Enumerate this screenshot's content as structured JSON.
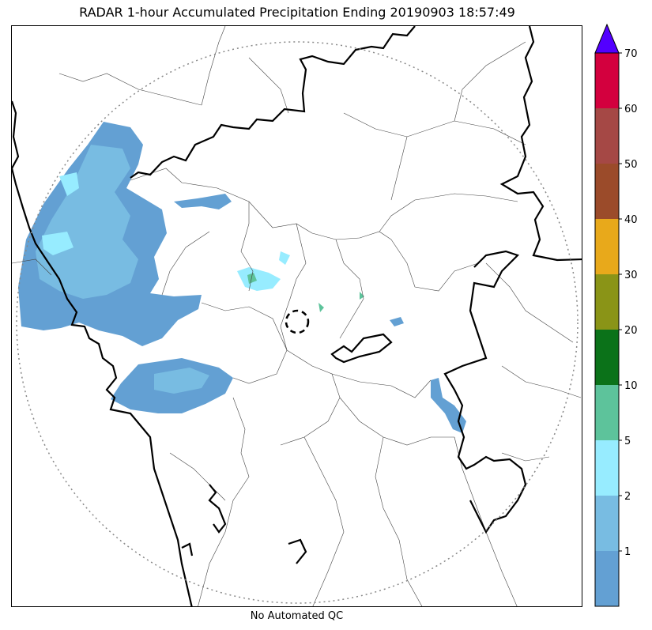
{
  "title": "RADAR 1-hour Accumulated Precipitation Ending 20190903 18:57:49",
  "footer": "No Automated QC",
  "colorbar": {
    "levels": [
      {
        "from": 0,
        "to": 1,
        "color": "#63a0d3"
      },
      {
        "from": 1,
        "to": 2,
        "color": "#78bce2"
      },
      {
        "from": 2,
        "to": 5,
        "color": "#97ecff"
      },
      {
        "from": 5,
        "to": 10,
        "color": "#5dc39b"
      },
      {
        "from": 10,
        "to": 20,
        "color": "#0b7219"
      },
      {
        "from": 20,
        "to": 30,
        "color": "#8a9417"
      },
      {
        "from": 30,
        "to": 40,
        "color": "#e8a91b"
      },
      {
        "from": 40,
        "to": 50,
        "color": "#9b4b2a"
      },
      {
        "from": 50,
        "to": 60,
        "color": "#a54845"
      },
      {
        "from": 60,
        "to": 70,
        "color": "#d3003e"
      }
    ],
    "tick_labels": [
      "1",
      "2",
      "5",
      "10",
      "20",
      "30",
      "40",
      "50",
      "60",
      "70"
    ],
    "extend_color": "#5300ff"
  },
  "map": {
    "boundary_color": "#000000",
    "range_ring_color": "#888888",
    "radar_site_marker": "dashed-circle"
  }
}
